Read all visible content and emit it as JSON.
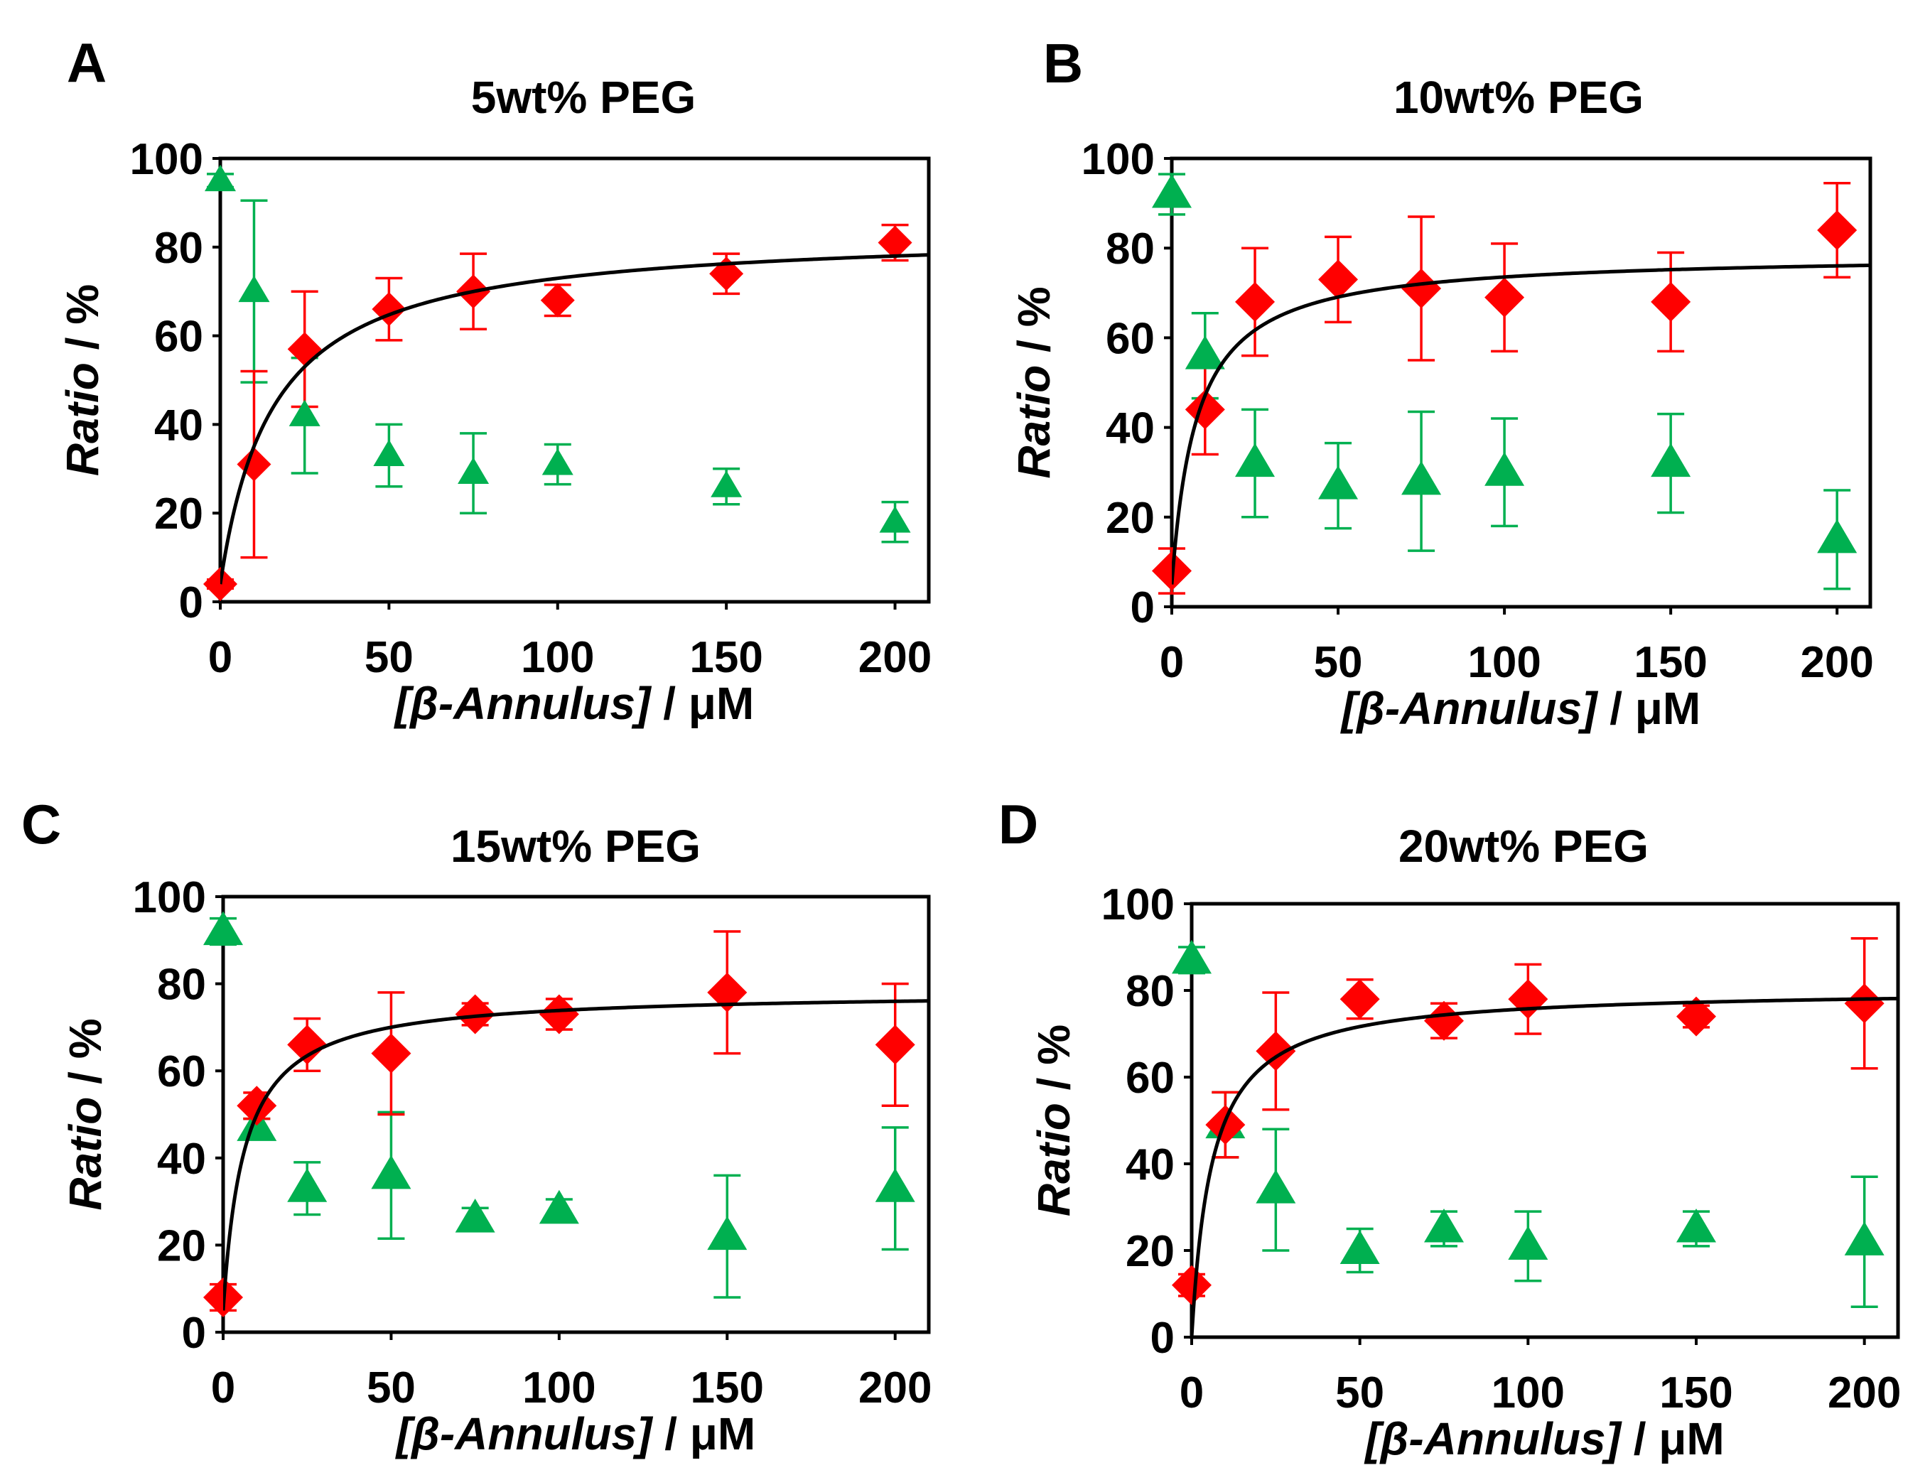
{
  "chart_data": [
    {
      "type": "scatter",
      "panel": "A",
      "title": "5wt% PEG",
      "xlabel": {
        "italic": "[β-Annulus]",
        "rest": " / μM"
      },
      "ylabel": {
        "italic": "Ratio",
        "rest": " / %"
      },
      "xlim": [
        0,
        210
      ],
      "ylim": [
        0,
        100
      ],
      "xticks": [
        0,
        50,
        100,
        150,
        200
      ],
      "yticks": [
        0,
        20,
        40,
        60,
        80,
        100
      ],
      "grid": false,
      "series": [
        {
          "marker": "triangle",
          "color": "#00b050",
          "x": [
            0,
            10,
            25,
            50,
            75,
            100,
            150,
            200
          ],
          "y": [
            95,
            70,
            42,
            33,
            29,
            31,
            26,
            18
          ],
          "err": [
            1.5,
            20.5,
            13,
            7,
            9,
            4.5,
            4,
            4.5
          ]
        },
        {
          "marker": "diamond",
          "color": "#ff0000",
          "x": [
            0,
            10,
            25,
            50,
            75,
            100,
            150,
            200
          ],
          "y": [
            4,
            31,
            57,
            66,
            70,
            68,
            74,
            81
          ],
          "err": [
            1,
            21,
            13,
            7,
            8.5,
            3.5,
            4.5,
            4
          ]
        }
      ],
      "fit": {
        "color": "#000000",
        "y0": 4,
        "bmax": 79.8,
        "kd": 15.7
      }
    },
    {
      "type": "scatter",
      "panel": "B",
      "title": "10wt% PEG",
      "xlabel": {
        "italic": "[β-Annulus]",
        "rest": " / μM"
      },
      "ylabel": {
        "italic": "Ratio",
        "rest": " / %"
      },
      "xlim": [
        0,
        210
      ],
      "ylim": [
        0,
        100
      ],
      "xticks": [
        0,
        50,
        100,
        150,
        200
      ],
      "yticks": [
        0,
        20,
        40,
        60,
        80,
        100
      ],
      "grid": false,
      "series": [
        {
          "marker": "triangle",
          "color": "#00b050",
          "x": [
            0,
            10,
            25,
            50,
            75,
            100,
            150,
            200
          ],
          "y": [
            92,
            56,
            32,
            27,
            28,
            30,
            32,
            15
          ],
          "err": [
            4.5,
            9.5,
            12,
            9.5,
            15.5,
            12,
            11,
            11
          ]
        },
        {
          "marker": "diamond",
          "color": "#ff0000",
          "x": [
            0,
            10,
            25,
            50,
            75,
            100,
            150,
            200
          ],
          "y": [
            8,
            44,
            68,
            73,
            71,
            69,
            68,
            84
          ],
          "err": [
            5,
            10,
            12,
            9.5,
            16,
            12,
            11,
            10.5
          ]
        }
      ],
      "fit": {
        "color": "#000000",
        "y0": 5,
        "bmax": 73.7,
        "kd": 7.5
      }
    },
    {
      "type": "scatter",
      "panel": "C",
      "title": "15wt% PEG",
      "xlabel": {
        "italic": "[β-Annulus]",
        "rest": " / μM"
      },
      "ylabel": {
        "italic": "Ratio",
        "rest": " / %"
      },
      "xlim": [
        0,
        210
      ],
      "ylim": [
        0,
        100
      ],
      "xticks": [
        0,
        50,
        100,
        150,
        200
      ],
      "yticks": [
        0,
        20,
        40,
        60,
        80,
        100
      ],
      "grid": false,
      "series": [
        {
          "marker": "triangle",
          "color": "#00b050",
          "x": [
            0,
            10,
            25,
            50,
            75,
            100,
            150,
            200
          ],
          "y": [
            92,
            47,
            33,
            36,
            26,
            28,
            22,
            33
          ],
          "err": [
            3,
            2,
            6,
            14.5,
            2.5,
            2.5,
            14,
            14
          ]
        },
        {
          "marker": "diamond",
          "color": "#ff0000",
          "x": [
            0,
            10,
            25,
            50,
            75,
            100,
            150,
            200
          ],
          "y": [
            8,
            52,
            66,
            64,
            73,
            73,
            78,
            66
          ],
          "err": [
            3,
            3,
            6,
            14,
            2.5,
            3.5,
            14,
            14
          ]
        }
      ],
      "fit": {
        "color": "#000000",
        "y0": 5,
        "bmax": 73.2,
        "kd": 6.3
      }
    },
    {
      "type": "scatter",
      "panel": "D",
      "title": "20wt% PEG",
      "xlabel": {
        "italic": "[β-Annulus]",
        "rest": " / μM"
      },
      "ylabel": {
        "italic": "Ratio",
        "rest": " / %"
      },
      "xlim": [
        0,
        210
      ],
      "ylim": [
        0,
        100
      ],
      "xticks": [
        0,
        50,
        100,
        150,
        200
      ],
      "yticks": [
        0,
        20,
        40,
        60,
        80,
        100
      ],
      "grid": false,
      "series": [
        {
          "marker": "triangle",
          "color": "#00b050",
          "x": [
            0,
            10,
            25,
            50,
            75,
            100,
            150,
            200
          ],
          "y": [
            87,
            49,
            34,
            20,
            25,
            21,
            25,
            22
          ],
          "err": [
            3,
            7.5,
            14,
            5,
            4,
            8,
            4,
            15
          ]
        },
        {
          "marker": "diamond",
          "color": "#ff0000",
          "x": [
            0,
            10,
            25,
            50,
            75,
            100,
            150,
            200
          ],
          "y": [
            12,
            49,
            66,
            78,
            73,
            78,
            74,
            77
          ],
          "err": [
            2.5,
            7.5,
            13.5,
            4.5,
            4,
            8,
            2.5,
            15
          ]
        }
      ],
      "fit": {
        "color": "#000000",
        "y0": 0,
        "bmax": 80.4,
        "kd": 6.1
      }
    }
  ]
}
